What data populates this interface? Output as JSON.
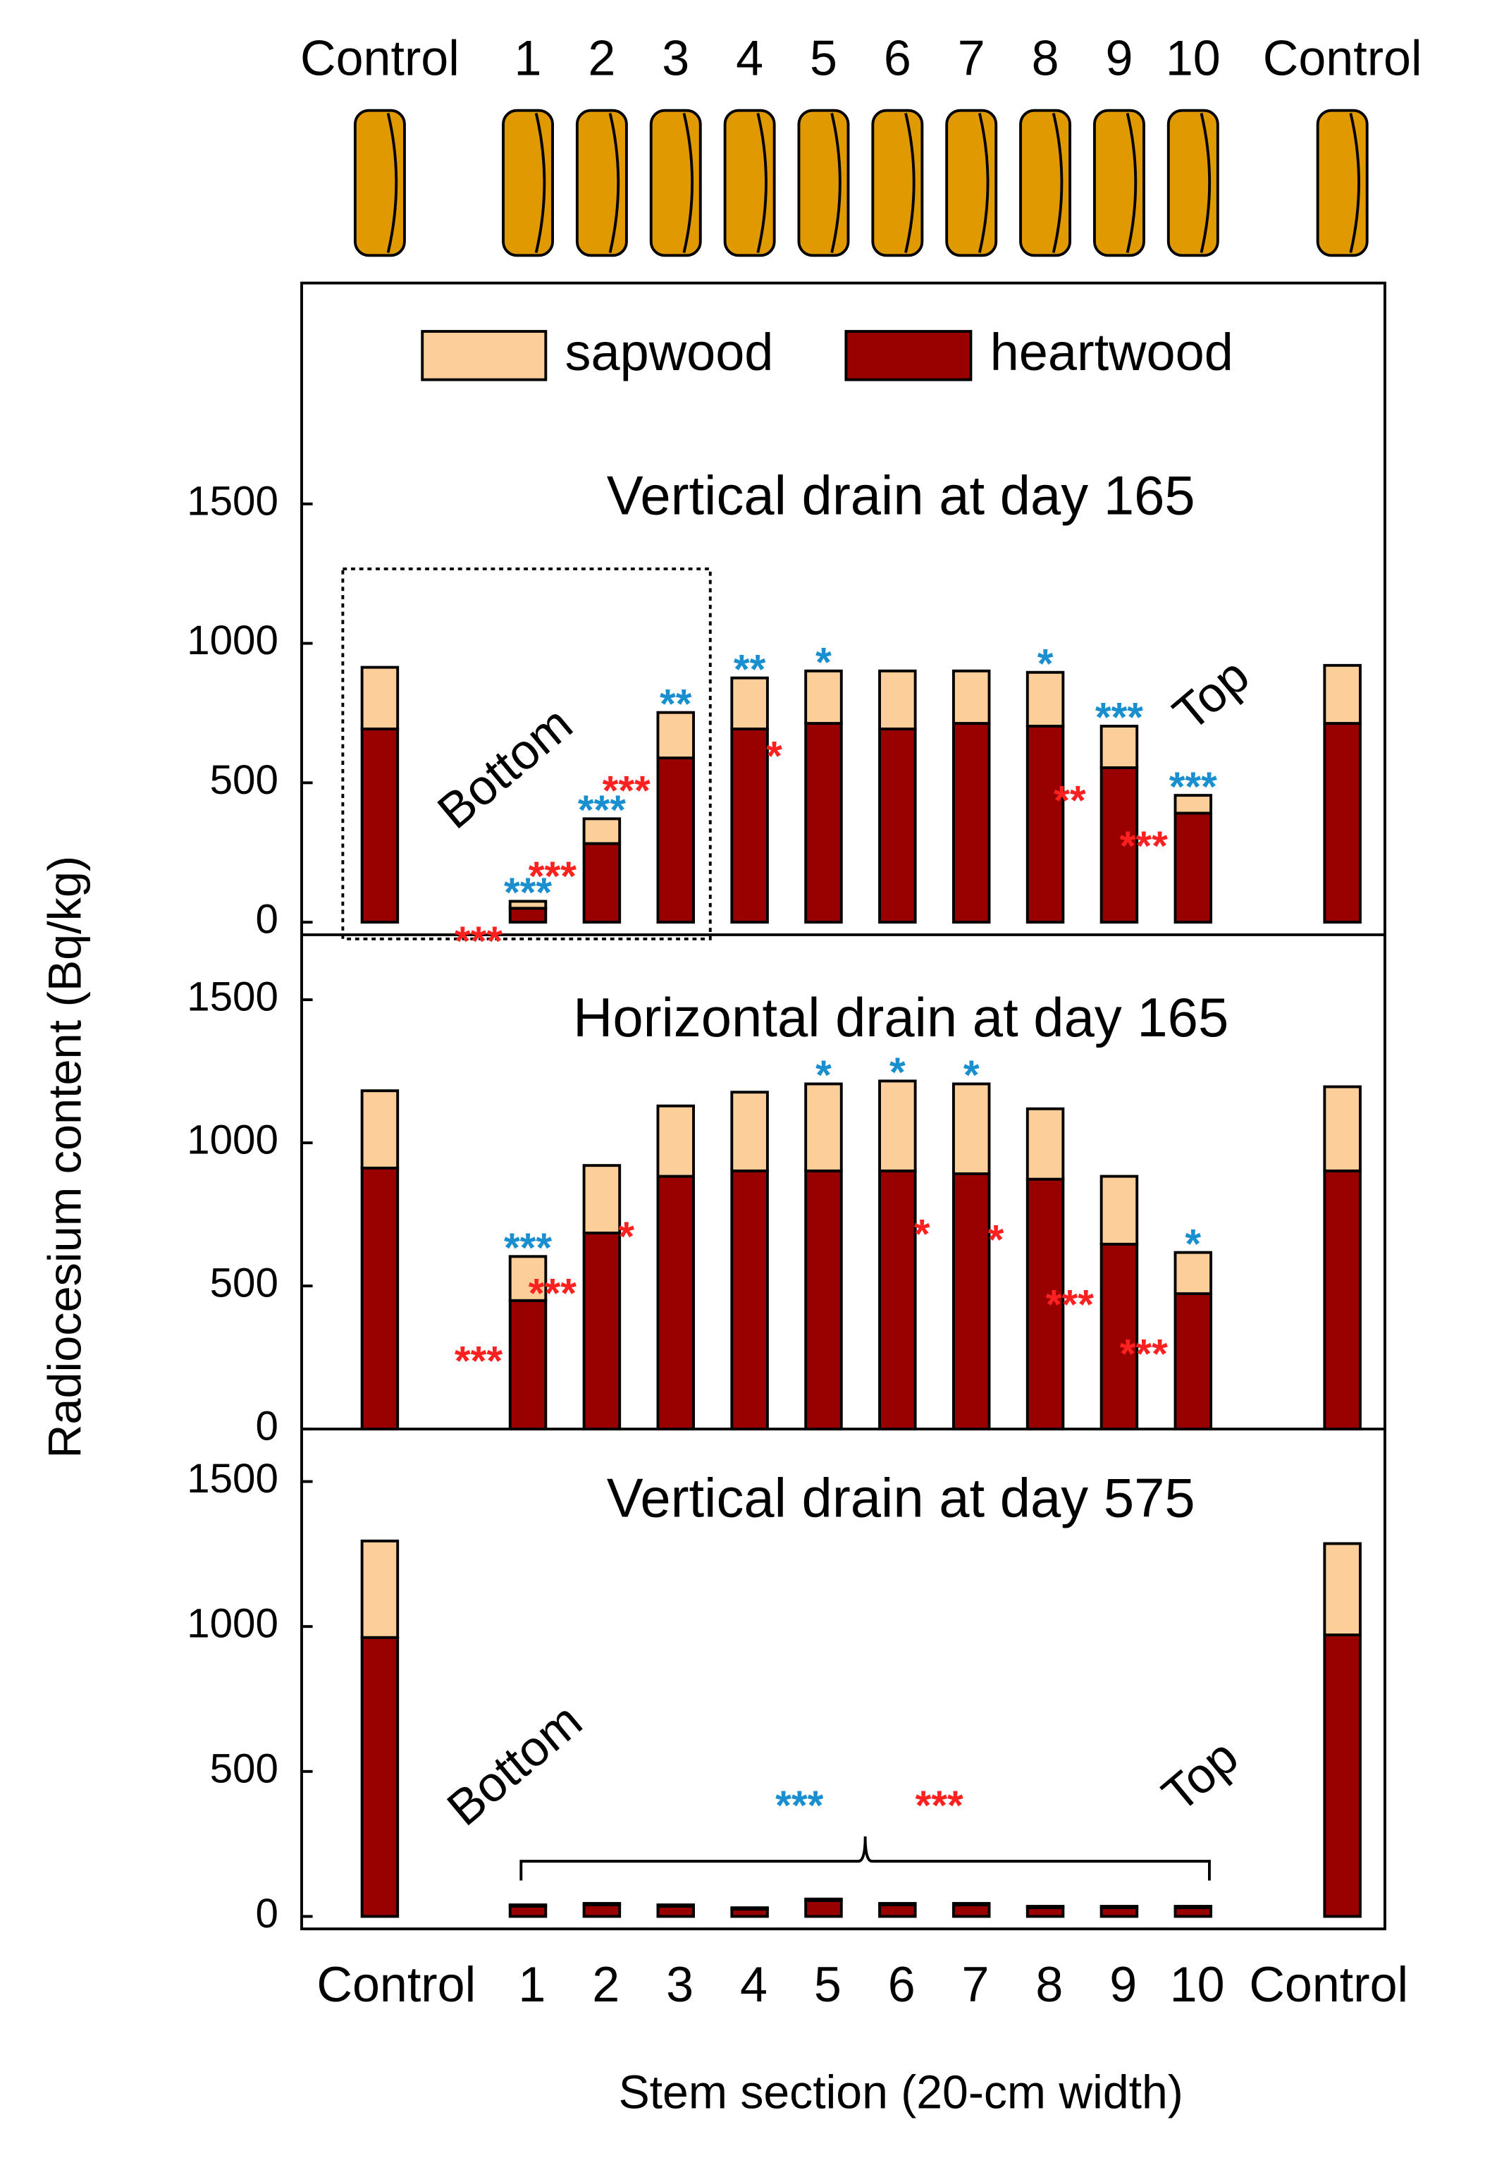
{
  "chart_data": [
    {
      "type": "stacked-bar",
      "title": "Vertical drain at day 165",
      "categories": [
        "Control",
        "1",
        "2",
        "3",
        "4",
        "5",
        "6",
        "7",
        "8",
        "9",
        "10",
        "Control"
      ],
      "series": [
        {
          "name": "sapwood",
          "color": "#fccf9a",
          "values": [
            221,
            25,
            89,
            163,
            183,
            188,
            208,
            188,
            193,
            149,
            64,
            208
          ],
          "significance": [
            null,
            "***",
            "***",
            "**",
            "**",
            "*",
            null,
            null,
            "*",
            "***",
            "***",
            null
          ],
          "sig_color": "#1a8fd0"
        },
        {
          "name": "heartwood",
          "color": "#990000",
          "values": [
            693,
            50,
            282,
            589,
            693,
            713,
            693,
            713,
            703,
            554,
            391,
            713
          ],
          "significance": [
            null,
            "***",
            "***",
            "***",
            null,
            "*",
            null,
            null,
            null,
            "**",
            "***",
            null
          ],
          "sig_color": "#ff2020"
        }
      ],
      "annotations": [
        "Bottom",
        "Top"
      ],
      "ylim": [
        -45,
        2292
      ],
      "yticks": [
        0,
        500,
        1000,
        1500
      ]
    },
    {
      "type": "stacked-bar",
      "title": "Horizontal drain at day 165",
      "y_label": "Radiocesium content (Bq/kg)",
      "categories": [
        "Control",
        "1",
        "2",
        "3",
        "4",
        "5",
        "6",
        "7",
        "8",
        "9",
        "10",
        "Control"
      ],
      "series": [
        {
          "name": "sapwood",
          "color": "#fccf9a",
          "values": [
            270,
            154,
            236,
            246,
            275,
            304,
            314,
            314,
            246,
            237,
            144,
            294
          ],
          "significance": [
            null,
            "***",
            null,
            null,
            null,
            "*",
            "*",
            "*",
            null,
            null,
            "*",
            null
          ],
          "sig_color": "#1a8fd0"
        },
        {
          "name": "heartwood",
          "color": "#990000",
          "values": [
            912,
            449,
            685,
            883,
            902,
            902,
            902,
            892,
            873,
            646,
            473,
            902
          ],
          "significance": [
            null,
            "***",
            "***",
            "*",
            null,
            null,
            null,
            "*",
            "*",
            "***",
            "***",
            null
          ],
          "sig_color": "#ff2020"
        }
      ],
      "ylim": [
        0,
        1727
      ],
      "yticks": [
        0,
        500,
        1000,
        1500
      ]
    },
    {
      "type": "stacked-bar",
      "title": "Vertical drain at day 575",
      "x_label": "Stem section (20-cm width)",
      "categories": [
        "Control",
        "1",
        "2",
        "3",
        "4",
        "5",
        "6",
        "7",
        "8",
        "9",
        "10",
        "Control"
      ],
      "series": [
        {
          "name": "sapwood",
          "color": "#fccf9a",
          "values": [
            333,
            5,
            5,
            5,
            5,
            5,
            5,
            5,
            5,
            5,
            5,
            315
          ],
          "group_significance": "***",
          "sig_color": "#1a8fd0"
        },
        {
          "name": "heartwood",
          "color": "#990000",
          "values": [
            962,
            35,
            40,
            35,
            25,
            55,
            40,
            40,
            30,
            30,
            30,
            971
          ],
          "group_significance": "***",
          "sig_color": "#ff2020"
        }
      ],
      "annotations": [
        "Bottom",
        "Top"
      ],
      "ylim": [
        -43,
        1681
      ],
      "yticks": [
        0,
        500,
        1000,
        1500
      ]
    }
  ]
}
